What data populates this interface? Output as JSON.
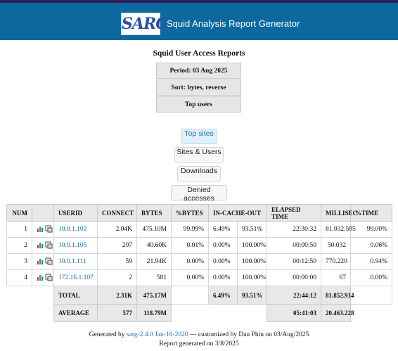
{
  "header": {
    "logo": "SARG",
    "title": "Squid Analysis Report Generator"
  },
  "report": {
    "title": "Squid User Access Reports",
    "period": "Period: 03 Aug 2025",
    "sort": "Sort: bytes, reverse",
    "section": "Top users"
  },
  "nav": [
    "Top sites",
    "Sites & Users",
    "Downloads",
    "Denied accesses"
  ],
  "table": {
    "headers": [
      "NUM",
      "USERID",
      "CONNECT",
      "BYTES",
      "%BYTES",
      "IN-CACHE-OUT",
      "ELAPSED TIME",
      "MILLISEC",
      "%TIME"
    ],
    "rows": [
      [
        "1",
        "10.0.1.102",
        "2.04K",
        "475.10M",
        "99.99%",
        "6.49%",
        "93.51%",
        "22:30:32",
        "81.032.595",
        "99.00%"
      ],
      [
        "2",
        "10.0.1.105",
        "207",
        "40.60K",
        "0.01%",
        "0.00%",
        "100.00%",
        "00:00:50",
        "50.032",
        "0.06%"
      ],
      [
        "3",
        "10.0.1.111",
        "59",
        "21.94K",
        "0.00%",
        "0.00%",
        "100.00%",
        "00:12:50",
        "770.220",
        "0.94%"
      ],
      [
        "4",
        "172.16.1.107",
        "2",
        "581",
        "0.00%",
        "0.00%",
        "100.00%",
        "00:00:00",
        "67",
        "0.00%"
      ]
    ],
    "total": {
      "label": "TOTAL",
      "connect": "2.31K",
      "bytes": "475.17M",
      "in": "6.49%",
      "out": "93.51%",
      "elapsed": "22:44:12",
      "millisec": "81.852.914"
    },
    "average": {
      "label": "AVERAGE",
      "connect": "577",
      "bytes": "118.79M",
      "elapsed": "05:41:03",
      "millisec": "20.463.228"
    }
  },
  "footer": {
    "prefix": "Generated by ",
    "link": "sarg-2.4.0 Jan-16-2020",
    "suffix": " — customized by Dau Phin on 03/Aug/2025",
    "generated": "Report generated on 3/8/2025"
  }
}
